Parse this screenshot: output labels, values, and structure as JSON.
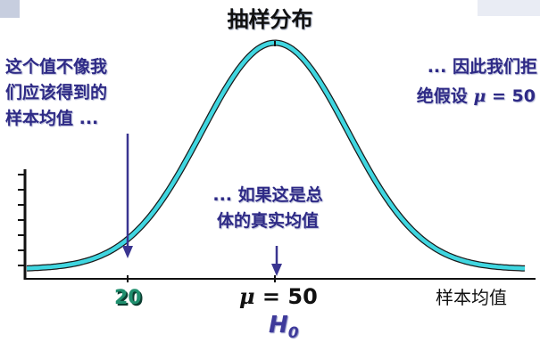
{
  "title": "抽样分布",
  "annotations": {
    "left": [
      "这个值不像我",
      "们应该得到的",
      "样本均值 ..."
    ],
    "middle": [
      "... 如果这是总",
      "体的真实均值"
    ],
    "right_line1": "... 因此我们拒",
    "right_line2_prefix": "绝假设 ",
    "right_line2_symbol": "μ",
    "right_line2_value": " = 50"
  },
  "x_axis": {
    "label": "样本均值",
    "marker_20": "20",
    "mean_symbol": "μ",
    "mean_value": " = 50",
    "hypothesis_symbol": "H",
    "hypothesis_subscript": "0"
  },
  "colors": {
    "curve": "#3fd6e0",
    "curve_outline": "#1a1a1a",
    "arrow": "#3a3590",
    "annotation_text": "#2e2a86"
  }
}
